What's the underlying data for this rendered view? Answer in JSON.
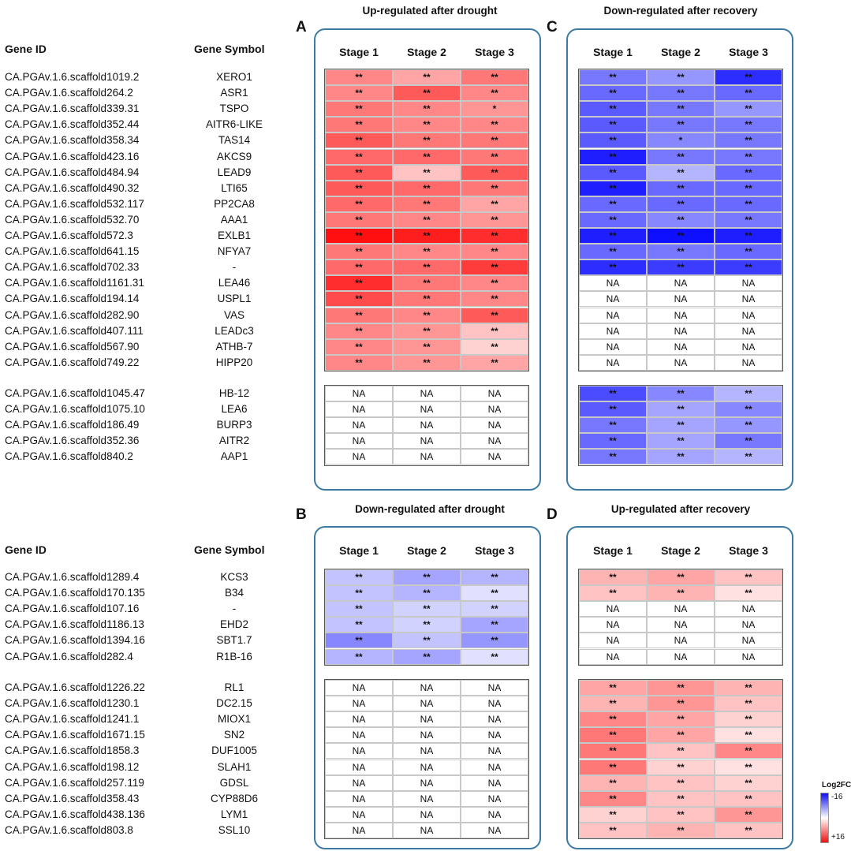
{
  "header": {
    "gene_id": "Gene ID",
    "gene_symbol": "Gene Symbol"
  },
  "stages": [
    "Stage 1",
    "Stage 2",
    "Stage 3"
  ],
  "panels": {
    "A": {
      "letter": "A",
      "title": "Up-regulated after drought"
    },
    "B": {
      "letter": "B",
      "title": "Down-regulated after drought"
    },
    "C": {
      "letter": "C",
      "title": "Down-regulated after recovery"
    },
    "D": {
      "letter": "D",
      "title": "Up-regulated after recovery"
    }
  },
  "legend": {
    "title": "Log2FC",
    "top": "-16",
    "bottom": "+16"
  },
  "chart_data": {
    "type": "heatmap",
    "value_range": [
      -16,
      16
    ],
    "columns": [
      "Stage 1",
      "Stage 2",
      "Stage 3"
    ],
    "section_top": {
      "group1": [
        {
          "id": "CA.PGAv.1.6.scaffold1019.2",
          "symbol": "XERO1",
          "A": [
            8,
            6,
            9
          ],
          "A_sig": [
            "**",
            "**",
            "**"
          ],
          "C": [
            -9,
            -7,
            -14
          ],
          "C_sig": [
            "**",
            "**",
            "**"
          ]
        },
        {
          "id": "CA.PGAv.1.6.scaffold264.2",
          "symbol": "ASR1",
          "A": [
            8,
            11,
            8
          ],
          "A_sig": [
            "**",
            "**",
            "**"
          ],
          "C": [
            -10,
            -9,
            -10
          ],
          "C_sig": [
            "**",
            "**",
            "**"
          ]
        },
        {
          "id": "CA.PGAv.1.6.scaffold339.31",
          "symbol": "TSPO",
          "A": [
            9,
            8,
            7
          ],
          "A_sig": [
            "**",
            "**",
            "*"
          ],
          "C": [
            -11,
            -9,
            -7
          ],
          "C_sig": [
            "**",
            "**",
            "**"
          ]
        },
        {
          "id": "CA.PGAv.1.6.scaffold352.44",
          "symbol": "AITR6-LIKE",
          "A": [
            9,
            8,
            8
          ],
          "A_sig": [
            "**",
            "**",
            "**"
          ],
          "C": [
            -11,
            -9,
            -9
          ],
          "C_sig": [
            "**",
            "**",
            "**"
          ]
        },
        {
          "id": "CA.PGAv.1.6.scaffold358.34",
          "symbol": "TAS14",
          "A": [
            11,
            9,
            9
          ],
          "A_sig": [
            "**",
            "**",
            "**"
          ],
          "C": [
            -11,
            -8,
            -9
          ],
          "C_sig": [
            "**",
            "*",
            "**"
          ]
        },
        {
          "id": "CA.PGAv.1.6.scaffold423.16",
          "symbol": "AKCS9",
          "A": [
            10,
            10,
            9
          ],
          "A_sig": [
            "**",
            "**",
            "**"
          ],
          "C": [
            -15,
            -9,
            -9
          ],
          "C_sig": [
            "**",
            "**",
            "**"
          ]
        },
        {
          "id": "CA.PGAv.1.6.scaffold484.94",
          "symbol": "LEAD9",
          "A": [
            11,
            4,
            11
          ],
          "A_sig": [
            "**",
            "**",
            "**"
          ],
          "C": [
            -11,
            -5,
            -10
          ],
          "C_sig": [
            "**",
            "**",
            "**"
          ]
        },
        {
          "id": "CA.PGAv.1.6.scaffold490.32",
          "symbol": "LTI65",
          "A": [
            11,
            10,
            9
          ],
          "A_sig": [
            "**",
            "**",
            "**"
          ],
          "C": [
            -15,
            -10,
            -10
          ],
          "C_sig": [
            "**",
            "**",
            "**"
          ]
        },
        {
          "id": "CA.PGAv.1.6.scaffold532.117",
          "symbol": "PP2CA8",
          "A": [
            10,
            9,
            6
          ],
          "A_sig": [
            "**",
            "**",
            "**"
          ],
          "C": [
            -10,
            -10,
            -10
          ],
          "C_sig": [
            "**",
            "**",
            "**"
          ]
        },
        {
          "id": "CA.PGAv.1.6.scaffold532.70",
          "symbol": "AAA1",
          "A": [
            9,
            8,
            7
          ],
          "A_sig": [
            "**",
            "**",
            "**"
          ],
          "C": [
            -10,
            -8,
            -9
          ],
          "C_sig": [
            "**",
            "**",
            "**"
          ]
        },
        {
          "id": "CA.PGAv.1.6.scaffold572.3",
          "symbol": "EXLB1",
          "A": [
            16,
            15,
            14
          ],
          "A_sig": [
            "**",
            "**",
            "**"
          ],
          "C": [
            -15,
            -16,
            -15
          ],
          "C_sig": [
            "**",
            "**",
            "**"
          ]
        },
        {
          "id": "CA.PGAv.1.6.scaffold641.15",
          "symbol": "NFYA7",
          "A": [
            9,
            8,
            8
          ],
          "A_sig": [
            "**",
            "**",
            "**"
          ],
          "C": [
            -10,
            -9,
            -10
          ],
          "C_sig": [
            "**",
            "**",
            "**"
          ]
        },
        {
          "id": "CA.PGAv.1.6.scaffold702.33",
          "symbol": "-",
          "A": [
            10,
            10,
            13
          ],
          "A_sig": [
            "**",
            "**",
            "**"
          ],
          "C": [
            -14,
            -13,
            -13
          ],
          "C_sig": [
            "**",
            "**",
            "**"
          ]
        },
        {
          "id": "CA.PGAv.1.6.scaffold1161.31",
          "symbol": "LEA46",
          "A": [
            14,
            9,
            8
          ],
          "A_sig": [
            "**",
            "**",
            "**"
          ],
          "C": null
        },
        {
          "id": "CA.PGAv.1.6.scaffold194.14",
          "symbol": "USPL1",
          "A": [
            12,
            9,
            8
          ],
          "A_sig": [
            "**",
            "**",
            "**"
          ],
          "C": null
        },
        {
          "id": "CA.PGAv.1.6.scaffold282.90",
          "symbol": "VAS",
          "A": [
            9,
            8,
            11
          ],
          "A_sig": [
            "**",
            "**",
            "**"
          ],
          "C": null
        },
        {
          "id": "CA.PGAv.1.6.scaffold407.111",
          "symbol": "LEADc3",
          "A": [
            8,
            7,
            4
          ],
          "A_sig": [
            "**",
            "**",
            "**"
          ],
          "C": null
        },
        {
          "id": "CA.PGAv.1.6.scaffold567.90",
          "symbol": "ATHB-7",
          "A": [
            8,
            7,
            3
          ],
          "A_sig": [
            "**",
            "**",
            "**"
          ],
          "C": null
        },
        {
          "id": "CA.PGAv.1.6.scaffold749.22",
          "symbol": "HIPP20",
          "A": [
            8,
            7,
            6
          ],
          "A_sig": [
            "**",
            "**",
            "**"
          ],
          "C": null
        }
      ],
      "group2": [
        {
          "id": "CA.PGAv.1.6.scaffold1045.47",
          "symbol": "HB-12",
          "A": null,
          "C": [
            -12,
            -8,
            -5
          ],
          "C_sig": [
            "**",
            "**",
            "**"
          ]
        },
        {
          "id": "CA.PGAv.1.6.scaffold1075.10",
          "symbol": "LEA6",
          "A": null,
          "C": [
            -11,
            -6,
            -8
          ],
          "C_sig": [
            "**",
            "**",
            "**"
          ]
        },
        {
          "id": "CA.PGAv.1.6.scaffold186.49",
          "symbol": "BURP3",
          "A": null,
          "C": [
            -9,
            -6,
            -7
          ],
          "C_sig": [
            "**",
            "**",
            "**"
          ]
        },
        {
          "id": "CA.PGAv.1.6.scaffold352.36",
          "symbol": "AITR2",
          "A": null,
          "C": [
            -10,
            -6,
            -9
          ],
          "C_sig": [
            "**",
            "**",
            "**"
          ]
        },
        {
          "id": "CA.PGAv.1.6.scaffold840.2",
          "symbol": "AAP1",
          "A": null,
          "C": [
            -9,
            -6,
            -5
          ],
          "C_sig": [
            "**",
            "**",
            "**"
          ]
        }
      ]
    },
    "section_bottom": {
      "group1": [
        {
          "id": "CA.PGAv.1.6.scaffold1289.4",
          "symbol": "KCS3",
          "B": [
            -4,
            -6,
            -5
          ],
          "B_sig": [
            "**",
            "**",
            "**"
          ],
          "D": [
            5,
            6,
            4
          ],
          "D_sig": [
            "**",
            "**",
            "**"
          ]
        },
        {
          "id": "CA.PGAv.1.6.scaffold170.135",
          "symbol": "B34",
          "B": [
            -4,
            -5,
            -2
          ],
          "B_sig": [
            "**",
            "**",
            "**"
          ],
          "D": [
            4,
            5,
            2
          ],
          "D_sig": [
            "**",
            "**",
            "**"
          ]
        },
        {
          "id": "CA.PGAv.1.6.scaffold107.16",
          "symbol": "-",
          "B": [
            -4,
            -3,
            -3
          ],
          "B_sig": [
            "**",
            "**",
            "**"
          ],
          "D": null
        },
        {
          "id": "CA.PGAv.1.6.scaffold1186.13",
          "symbol": "EHD2",
          "B": [
            -4,
            -3,
            -6
          ],
          "B_sig": [
            "**",
            "**",
            "**"
          ],
          "D": null
        },
        {
          "id": "CA.PGAv.1.6.scaffold1394.16",
          "symbol": "SBT1.7",
          "B": [
            -8,
            -4,
            -7
          ],
          "B_sig": [
            "**",
            "**",
            "**"
          ],
          "D": null
        },
        {
          "id": "CA.PGAv.1.6.scaffold282.4",
          "symbol": "R1B-16",
          "B": [
            -5,
            -6,
            -2
          ],
          "B_sig": [
            "**",
            "**",
            "**"
          ],
          "D": null
        }
      ],
      "group2": [
        {
          "id": "CA.PGAv.1.6.scaffold1226.22",
          "symbol": "RL1",
          "B": null,
          "D": [
            6,
            7,
            5
          ],
          "D_sig": [
            "**",
            "**",
            "**"
          ]
        },
        {
          "id": "CA.PGAv.1.6.scaffold1230.1",
          "symbol": "DC2.15",
          "B": null,
          "D": [
            5,
            7,
            4
          ],
          "D_sig": [
            "**",
            "**",
            "**"
          ]
        },
        {
          "id": "CA.PGAv.1.6.scaffold1241.1",
          "symbol": "MIOX1",
          "B": null,
          "D": [
            8,
            6,
            3
          ],
          "D_sig": [
            "**",
            "**",
            "**"
          ]
        },
        {
          "id": "CA.PGAv.1.6.scaffold1671.15",
          "symbol": "SN2",
          "B": null,
          "D": [
            9,
            6,
            2
          ],
          "D_sig": [
            "**",
            "**",
            "**"
          ]
        },
        {
          "id": "CA.PGAv.1.6.scaffold1858.3",
          "symbol": "DUF1005",
          "B": null,
          "D": [
            9,
            4,
            8
          ],
          "D_sig": [
            "**",
            "**",
            "**"
          ]
        },
        {
          "id": "CA.PGAv.1.6.scaffold198.12",
          "symbol": "SLAH1",
          "B": null,
          "D": [
            9,
            3,
            2
          ],
          "D_sig": [
            "**",
            "**",
            "**"
          ]
        },
        {
          "id": "CA.PGAv.1.6.scaffold257.119",
          "symbol": "GDSL",
          "B": null,
          "D": [
            5,
            4,
            3
          ],
          "D_sig": [
            "**",
            "**",
            "**"
          ]
        },
        {
          "id": "CA.PGAv.1.6.scaffold358.43",
          "symbol": "CYP88D6",
          "B": null,
          "D": [
            8,
            4,
            4
          ],
          "D_sig": [
            "**",
            "**",
            "**"
          ]
        },
        {
          "id": "CA.PGAv.1.6.scaffold438.136",
          "symbol": "LYM1",
          "B": null,
          "D": [
            3,
            4,
            7
          ],
          "D_sig": [
            "**",
            "**",
            "**"
          ]
        },
        {
          "id": "CA.PGAv.1.6.scaffold803.8",
          "symbol": "SSL10",
          "B": null,
          "D": [
            4,
            5,
            4
          ],
          "D_sig": [
            "**",
            "**",
            "**"
          ]
        }
      ]
    },
    "na_label": "NA"
  }
}
